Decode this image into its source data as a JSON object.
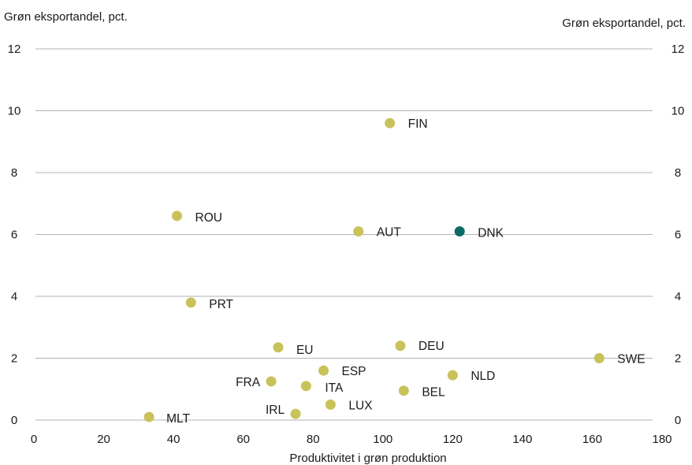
{
  "chart_data": {
    "type": "scatter",
    "title": "",
    "ylabel_left": "Grøn eksportandel, pct.",
    "ylabel_right": "Grøn eksportandel, pct.",
    "xlabel": "Produktivitet i grøn produktion",
    "xlim": [
      0,
      180
    ],
    "ylim": [
      0,
      12
    ],
    "x_ticks": [
      0,
      20,
      40,
      60,
      80,
      100,
      120,
      140,
      160,
      180
    ],
    "y_ticks": [
      0,
      2,
      4,
      6,
      8,
      10,
      12
    ],
    "grid": "horizontal",
    "colors": {
      "default": "#c8c25a",
      "highlight": "#0d6b64"
    },
    "points": [
      {
        "label": "FIN",
        "x": 102,
        "y": 9.6,
        "highlight": false
      },
      {
        "label": "ROU",
        "x": 41,
        "y": 6.6,
        "highlight": false
      },
      {
        "label": "AUT",
        "x": 93,
        "y": 6.1,
        "highlight": false
      },
      {
        "label": "DNK",
        "x": 122,
        "y": 6.1,
        "highlight": true
      },
      {
        "label": "PRT",
        "x": 45,
        "y": 3.8,
        "highlight": false
      },
      {
        "label": "EU",
        "x": 70,
        "y": 2.35,
        "highlight": false
      },
      {
        "label": "DEU",
        "x": 105,
        "y": 2.4,
        "highlight": false
      },
      {
        "label": "SWE",
        "x": 162,
        "y": 2.0,
        "highlight": false
      },
      {
        "label": "ESP",
        "x": 83,
        "y": 1.6,
        "highlight": false
      },
      {
        "label": "NLD",
        "x": 120,
        "y": 1.45,
        "highlight": false
      },
      {
        "label": "FRA",
        "x": 68,
        "y": 1.25,
        "highlight": false
      },
      {
        "label": "ITA",
        "x": 78,
        "y": 1.1,
        "highlight": false
      },
      {
        "label": "BEL",
        "x": 106,
        "y": 0.95,
        "highlight": false
      },
      {
        "label": "LUX",
        "x": 85,
        "y": 0.5,
        "highlight": false
      },
      {
        "label": "IRL",
        "x": 75,
        "y": 0.2,
        "highlight": false
      },
      {
        "label": "MLT",
        "x": 33,
        "y": 0.1,
        "highlight": false
      }
    ]
  }
}
